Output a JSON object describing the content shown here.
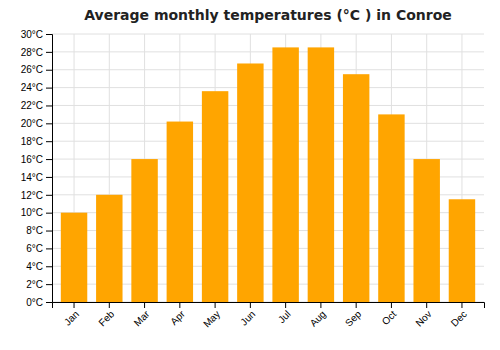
{
  "chart_data": {
    "type": "bar",
    "title": "Average monthly temperatures (°C ) in Conroe",
    "categories": [
      "Jan",
      "Feb",
      "Mar",
      "Apr",
      "May",
      "Jun",
      "Jul",
      "Aug",
      "Sep",
      "Oct",
      "Nov",
      "Dec"
    ],
    "values": [
      10,
      12,
      16,
      20.2,
      23.6,
      26.7,
      28.5,
      28.5,
      25.5,
      21,
      16,
      11.5
    ],
    "color": "#FFA500",
    "ylim": [
      0,
      30
    ],
    "yticks": [
      {
        "value": 0,
        "label": "0°C"
      },
      {
        "value": 2,
        "label": "2°C"
      },
      {
        "value": 4,
        "label": "4°C"
      },
      {
        "value": 6,
        "label": "6°C"
      },
      {
        "value": 8,
        "label": "8°C"
      },
      {
        "value": 10,
        "label": "10°C"
      },
      {
        "value": 12,
        "label": "12°C"
      },
      {
        "value": 14,
        "label": "14°C"
      },
      {
        "value": 16,
        "label": "16°C"
      },
      {
        "value": 18,
        "label": "18°C"
      },
      {
        "value": 20,
        "label": "20°C"
      },
      {
        "value": 22,
        "label": "22°C"
      },
      {
        "value": 24,
        "label": "24°C"
      },
      {
        "value": 26,
        "label": "26°C"
      },
      {
        "value": 28,
        "label": "28°C"
      },
      {
        "value": 30,
        "label": "30°C"
      }
    ],
    "grid": true
  }
}
